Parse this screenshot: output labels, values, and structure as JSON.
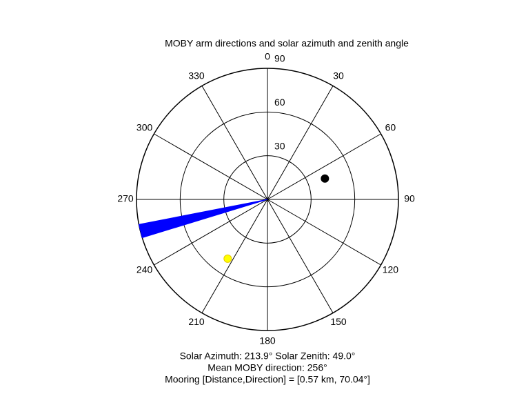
{
  "chart_data": {
    "type": "polar",
    "title": "MOBY arm directions and solar azimuth and zenith angle",
    "rlim": [
      0,
      90
    ],
    "rticks": [
      30,
      60,
      90
    ],
    "thetaticks": [
      0,
      30,
      60,
      90,
      120,
      150,
      180,
      210,
      240,
      270,
      300,
      330
    ],
    "wedge": {
      "theta": [
        253,
        259
      ],
      "r": 90,
      "color": "#0000ff"
    },
    "markers": [
      {
        "theta": 213.9,
        "r": 49,
        "color": "#ffff00"
      },
      {
        "theta": 70.04,
        "r": 42,
        "color": "#000000"
      }
    ],
    "annotations": [
      "Solar Azimuth: 213.9° Solar Zenith: 49.0°",
      "Mean MOBY direction: 256°",
      "Mooring [Distance,Direction] = [0.57 km, 70.04°]"
    ]
  }
}
